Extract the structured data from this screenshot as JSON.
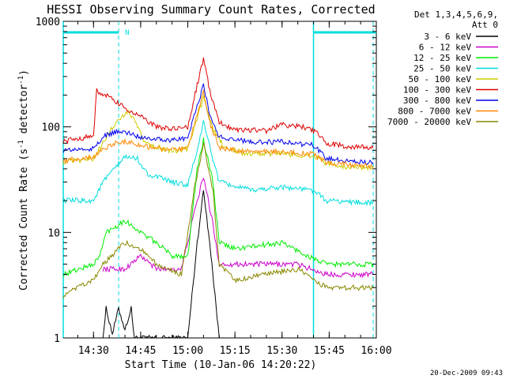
{
  "chart_data": {
    "type": "line",
    "title": "HESSI Observing Summary Count Rates, Corrected",
    "xlabel": "Start Time (10-Jan-06 14:20:22)",
    "ylabel_main": "Corrected Count Rate (s",
    "ylabel_exp1": "-1",
    "ylabel_mid": " detector",
    "ylabel_exp2": "-1",
    "ylabel_end": ")",
    "yscale": "log",
    "ylim": [
      1,
      1000
    ],
    "xlim": [
      "14:20:22",
      "16:00"
    ],
    "xticks": [
      "14:30",
      "14:45",
      "15:00",
      "15:15",
      "15:30",
      "15:45",
      "16:00"
    ],
    "yticks": [
      "1",
      "10",
      "100",
      "1000"
    ],
    "grid": false,
    "legend_header": [
      "Det 1,3,4,5,6,9,",
      "Att 0"
    ],
    "legend_placement": "right",
    "annotations": {
      "night_marker": "N",
      "night_intervals": [
        [
          "14:20:22",
          "14:38"
        ],
        [
          "15:40",
          "16:00"
        ]
      ],
      "saa_dashed_lines": [
        "14:38",
        "15:59"
      ]
    },
    "series": [
      {
        "name": "3 - 6 keV",
        "color": "#000000",
        "points": [
          [
            "14:33",
            1
          ],
          [
            "14:34",
            1.9
          ],
          [
            "14:36",
            1.1
          ],
          [
            "14:38",
            1.9
          ],
          [
            "14:40",
            1.2
          ],
          [
            "14:42",
            1.9
          ],
          [
            "14:43",
            1
          ],
          [
            "15:00",
            1
          ],
          [
            "15:03",
            8
          ],
          [
            "15:05",
            25
          ],
          [
            "15:07",
            8
          ],
          [
            "15:10",
            1
          ]
        ]
      },
      {
        "name": "6 - 12 keV",
        "color": "#cc00cc",
        "points": [
          [
            "14:33",
            4.5
          ],
          [
            "14:40",
            4.5
          ],
          [
            "14:45",
            6
          ],
          [
            "14:50",
            4.5
          ],
          [
            "14:58",
            4.5
          ],
          [
            "15:02",
            15
          ],
          [
            "15:05",
            34
          ],
          [
            "15:08",
            12
          ],
          [
            "15:10",
            5
          ],
          [
            "15:20",
            5
          ],
          [
            "15:35",
            5
          ],
          [
            "15:44",
            4
          ],
          [
            "15:50",
            4
          ],
          [
            "15:59",
            4
          ]
        ]
      },
      {
        "name": "12 - 25 keV",
        "color": "#00ee00",
        "points": [
          [
            "14:20:22",
            4
          ],
          [
            "14:30",
            5
          ],
          [
            "14:32",
            6
          ],
          [
            "14:34",
            10
          ],
          [
            "14:40",
            13
          ],
          [
            "14:45",
            10
          ],
          [
            "14:50",
            8
          ],
          [
            "14:55",
            6
          ],
          [
            "15:00",
            6
          ],
          [
            "15:03",
            40
          ],
          [
            "15:05",
            75
          ],
          [
            "15:08",
            30
          ],
          [
            "15:10",
            8
          ],
          [
            "15:15",
            7
          ],
          [
            "15:30",
            8
          ],
          [
            "15:38",
            6
          ],
          [
            "15:44",
            5
          ],
          [
            "15:50",
            5
          ],
          [
            "15:59",
            5
          ]
        ]
      },
      {
        "name": "25 - 50 keV",
        "color": "#00dddd",
        "points": [
          [
            "14:20:22",
            20
          ],
          [
            "14:30",
            20
          ],
          [
            "14:33",
            30
          ],
          [
            "14:40",
            52
          ],
          [
            "14:44",
            50
          ],
          [
            "14:47",
            36
          ],
          [
            "14:55",
            30
          ],
          [
            "15:00",
            28
          ],
          [
            "15:03",
            60
          ],
          [
            "15:05",
            110
          ],
          [
            "15:08",
            50
          ],
          [
            "15:10",
            30
          ],
          [
            "15:20",
            25
          ],
          [
            "15:30",
            27
          ],
          [
            "15:40",
            25
          ],
          [
            "15:44",
            20
          ],
          [
            "15:59",
            19
          ]
        ]
      },
      {
        "name": "50 - 100 keV",
        "color": "#cccc00",
        "points": [
          [
            "14:20:22",
            46
          ],
          [
            "14:30",
            50
          ],
          [
            "14:33",
            70
          ],
          [
            "14:37",
            110
          ],
          [
            "14:41",
            140
          ],
          [
            "14:43",
            120
          ],
          [
            "14:46",
            72
          ],
          [
            "14:55",
            58
          ],
          [
            "15:00",
            62
          ],
          [
            "15:03",
            120
          ],
          [
            "15:05",
            190
          ],
          [
            "15:08",
            95
          ],
          [
            "15:12",
            62
          ],
          [
            "15:20",
            55
          ],
          [
            "15:30",
            56
          ],
          [
            "15:38",
            53
          ],
          [
            "15:41",
            52
          ],
          [
            "15:44",
            45
          ],
          [
            "15:50",
            42
          ],
          [
            "15:59",
            41
          ]
        ]
      },
      {
        "name": "100 - 300 keV",
        "color": "#dd0000",
        "points": [
          [
            "14:20:22",
            73
          ],
          [
            "14:30",
            82
          ],
          [
            "14:31",
            220
          ],
          [
            "14:35",
            190
          ],
          [
            "14:40",
            150
          ],
          [
            "14:45",
            125
          ],
          [
            "14:50",
            100
          ],
          [
            "14:55",
            95
          ],
          [
            "15:00",
            100
          ],
          [
            "15:03",
            250
          ],
          [
            "15:05",
            440
          ],
          [
            "15:07",
            220
          ],
          [
            "15:10",
            110
          ],
          [
            "15:15",
            95
          ],
          [
            "15:25",
            92
          ],
          [
            "15:30",
            105
          ],
          [
            "15:37",
            100
          ],
          [
            "15:41",
            88
          ],
          [
            "15:44",
            70
          ],
          [
            "15:50",
            66
          ],
          [
            "15:59",
            63
          ]
        ]
      },
      {
        "name": "300 - 800 keV",
        "color": "#0000ee",
        "points": [
          [
            "14:20:22",
            60
          ],
          [
            "14:30",
            62
          ],
          [
            "14:33",
            80
          ],
          [
            "14:37",
            90
          ],
          [
            "14:41",
            88
          ],
          [
            "14:45",
            80
          ],
          [
            "14:55",
            75
          ],
          [
            "15:00",
            78
          ],
          [
            "15:03",
            160
          ],
          [
            "15:05",
            250
          ],
          [
            "15:07",
            130
          ],
          [
            "15:10",
            80
          ],
          [
            "15:20",
            72
          ],
          [
            "15:30",
            72
          ],
          [
            "15:40",
            67
          ],
          [
            "15:44",
            50
          ],
          [
            "15:50",
            48
          ],
          [
            "15:59",
            46
          ]
        ]
      },
      {
        "name": "800 - 7000 keV",
        "color": "#ff8800",
        "points": [
          [
            "14:20:22",
            48
          ],
          [
            "14:30",
            52
          ],
          [
            "14:33",
            62
          ],
          [
            "14:37",
            70
          ],
          [
            "14:41",
            73
          ],
          [
            "14:45",
            66
          ],
          [
            "14:55",
            60
          ],
          [
            "15:00",
            62
          ],
          [
            "15:03",
            130
          ],
          [
            "15:05",
            220
          ],
          [
            "15:07",
            110
          ],
          [
            "15:10",
            63
          ],
          [
            "15:20",
            58
          ],
          [
            "15:30",
            58
          ],
          [
            "15:40",
            55
          ],
          [
            "15:44",
            46
          ],
          [
            "15:50",
            44
          ],
          [
            "15:59",
            42
          ]
        ]
      },
      {
        "name": "7000 - 20000 keV",
        "color": "#888800",
        "points": [
          [
            "14:20:22",
            2.5
          ],
          [
            "14:25",
            3
          ],
          [
            "14:30",
            3.5
          ],
          [
            "14:33",
            5
          ],
          [
            "14:40",
            8
          ],
          [
            "14:45",
            7
          ],
          [
            "14:50",
            5
          ],
          [
            "14:58",
            4
          ],
          [
            "15:02",
            25
          ],
          [
            "15:05",
            70
          ],
          [
            "15:08",
            25
          ],
          [
            "15:10",
            5
          ],
          [
            "15:15",
            3.5
          ],
          [
            "15:25",
            4
          ],
          [
            "15:35",
            4.5
          ],
          [
            "15:44",
            3
          ],
          [
            "15:50",
            3
          ],
          [
            "15:59",
            3
          ]
        ]
      }
    ]
  },
  "footer_date": "20-Dec-2009 09:43"
}
